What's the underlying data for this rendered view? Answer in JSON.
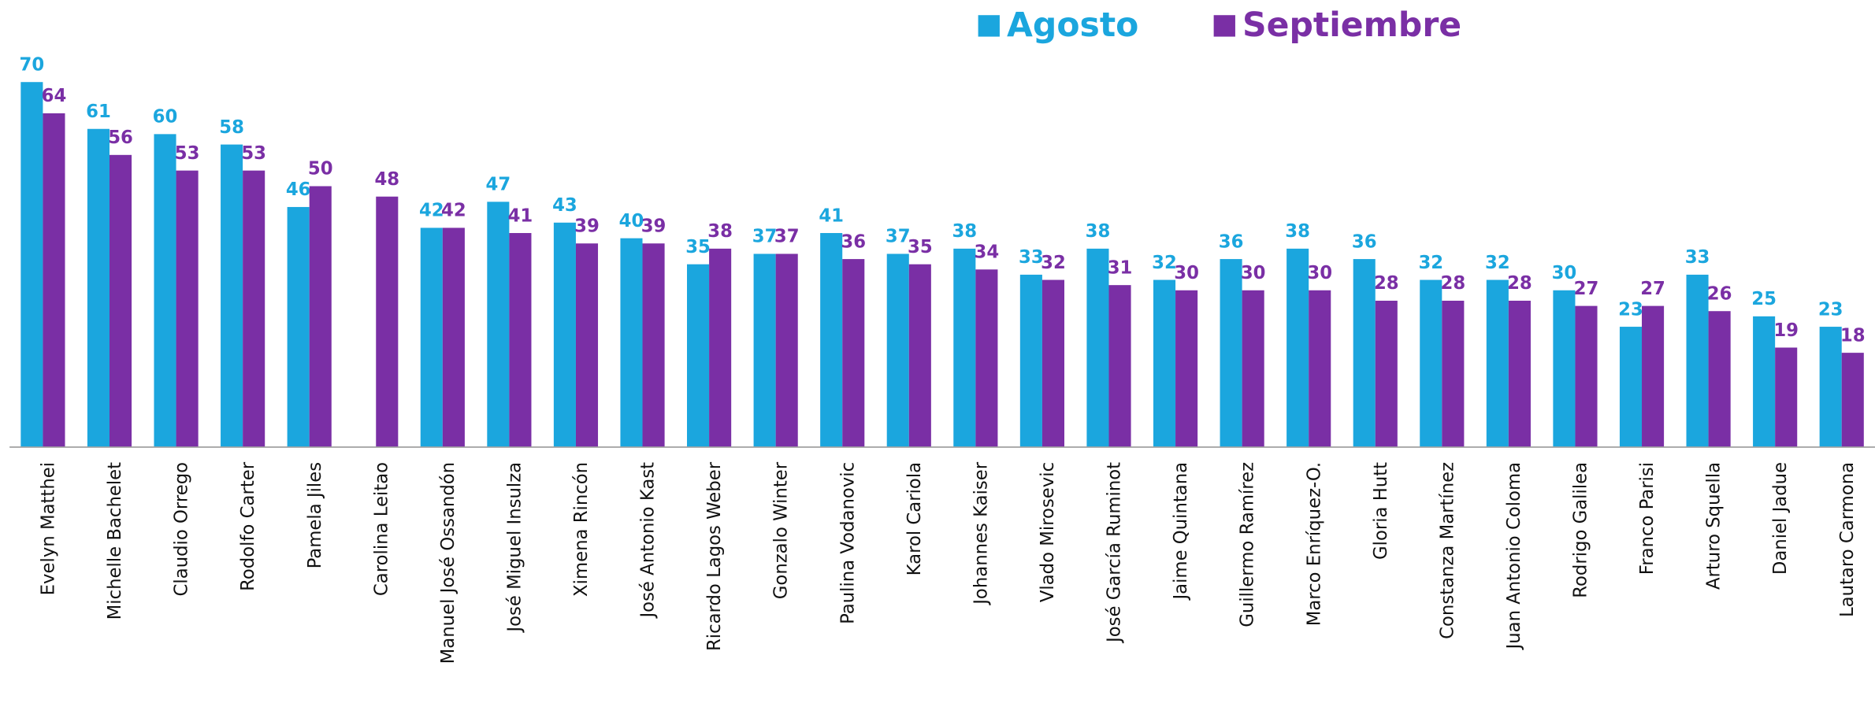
{
  "chart_data": {
    "type": "bar",
    "categories": [
      "Evelyn Matthei",
      "Michelle Bachelet",
      "Claudio Orrego",
      "Rodolfo Carter",
      "Pamela Jiles",
      "Carolina Leitao",
      "Manuel José Ossandón",
      "José Miguel Insulza",
      "Ximena Rincón",
      "José Antonio Kast",
      "Ricardo Lagos Weber",
      "Gonzalo Winter",
      "Paulina Vodanovic",
      "Karol Cariola",
      "Johannes Kaiser",
      "Vlado Mirosevic",
      "José García Ruminot",
      "Jaime Quintana",
      "Guillermo Ramírez",
      "Marco Enríquez-O.",
      "Gloria Hutt",
      "Constanza Martínez",
      "Juan Antonio Coloma",
      "Rodrigo Galilea",
      "Franco Parisi",
      "Arturo Squella",
      "Daniel Jadue",
      "Lautaro Carmona"
    ],
    "series": [
      {
        "name": "Agosto",
        "color": "#1ba6de",
        "values": [
          70,
          61,
          60,
          58,
          46,
          null,
          42,
          47,
          43,
          40,
          35,
          37,
          41,
          37,
          38,
          33,
          38,
          32,
          36,
          38,
          36,
          32,
          32,
          30,
          23,
          33,
          25,
          23
        ]
      },
      {
        "name": "Septiembre",
        "color": "#7a2fa5",
        "values": [
          64,
          56,
          53,
          53,
          50,
          48,
          42,
          41,
          39,
          39,
          38,
          37,
          36,
          35,
          34,
          32,
          31,
          30,
          30,
          30,
          28,
          28,
          28,
          27,
          27,
          26,
          19,
          18
        ]
      }
    ],
    "ylim": [
      0,
      70
    ],
    "legend": "top"
  }
}
